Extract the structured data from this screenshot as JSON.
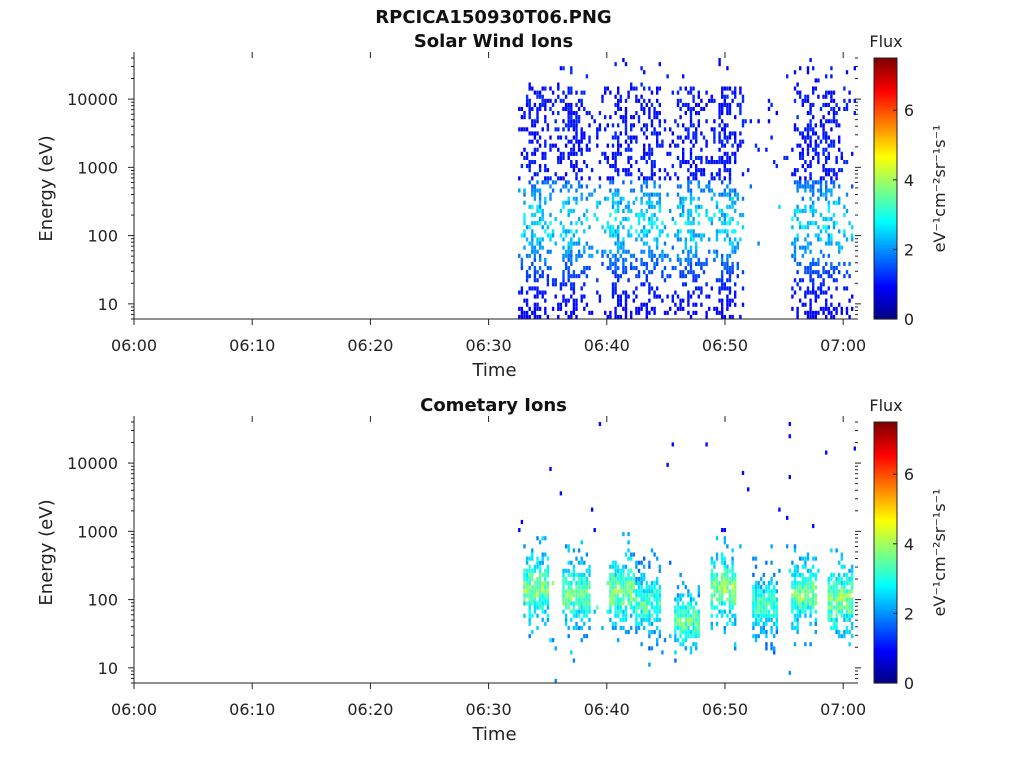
{
  "figure": {
    "title": "RPCICA150930T06.PNG"
  },
  "chart_data": [
    {
      "type": "heatmap",
      "title": "Solar Wind Ions",
      "xlabel": "Time",
      "ylabel": "Energy (eV)",
      "x_ticks": [
        "06:00",
        "06:10",
        "06:20",
        "06:30",
        "06:40",
        "06:50",
        "07:00"
      ],
      "xlim": [
        "06:00",
        "07:01"
      ],
      "y_scale": "log",
      "y_ticks": [
        "10",
        "100",
        "1000",
        "10000"
      ],
      "ylim": [
        6,
        40000
      ],
      "colorbar": {
        "label": "Flux",
        "unit": "eV⁻¹cm⁻²sr⁻¹s⁻¹",
        "ticks": [
          "0",
          "2",
          "4",
          "6"
        ],
        "range": [
          0,
          7.5
        ],
        "colormap": "jet"
      },
      "data_start": "06:32:30",
      "activity_bursts": [
        {
          "center": "06:34:00",
          "peak_energy": 200,
          "flux": 2.8
        },
        {
          "center": "06:37:00",
          "peak_energy": 200,
          "flux": 2.8
        },
        {
          "center": "06:41:00",
          "peak_energy": 250,
          "flux": 2.7
        },
        {
          "center": "06:43:30",
          "peak_energy": 150,
          "flux": 2.5
        },
        {
          "center": "06:47:00",
          "peak_energy": 150,
          "flux": 2.5
        },
        {
          "center": "06:50:00",
          "peak_energy": 250,
          "flux": 2.8
        },
        {
          "center": "06:57:00",
          "peak_energy": 150,
          "flux": 2.6
        },
        {
          "center": "06:58:30",
          "peak_energy": 150,
          "flux": 2.6
        }
      ],
      "gaps": [
        [
          "06:51:30",
          "06:55:30"
        ]
      ]
    },
    {
      "type": "heatmap",
      "title": "Cometary Ions",
      "xlabel": "Time",
      "ylabel": "Energy (eV)",
      "x_ticks": [
        "06:00",
        "06:10",
        "06:20",
        "06:30",
        "06:40",
        "06:50",
        "07:00"
      ],
      "xlim": [
        "06:00",
        "07:01"
      ],
      "y_scale": "log",
      "y_ticks": [
        "10",
        "100",
        "1000",
        "10000"
      ],
      "ylim": [
        6,
        40000
      ],
      "colorbar": {
        "label": "Flux",
        "unit": "eV⁻¹cm⁻²sr⁻¹s⁻¹",
        "ticks": [
          "0",
          "2",
          "4",
          "6"
        ],
        "range": [
          0,
          7.5
        ],
        "colormap": "jet"
      },
      "data_start": "06:32:30",
      "activity_bursts": [
        {
          "center": "06:34:00",
          "peak_energy": 150,
          "flux": 4.0
        },
        {
          "center": "06:37:20",
          "peak_energy": 120,
          "flux": 3.9
        },
        {
          "center": "06:41:10",
          "peak_energy": 130,
          "flux": 4.0
        },
        {
          "center": "06:43:20",
          "peak_energy": 90,
          "flux": 3.6
        },
        {
          "center": "06:46:40",
          "peak_energy": 50,
          "flux": 3.7
        },
        {
          "center": "06:49:50",
          "peak_energy": 150,
          "flux": 4.1
        },
        {
          "center": "06:53:20",
          "peak_energy": 80,
          "flux": 3.5
        },
        {
          "center": "06:56:40",
          "peak_energy": 120,
          "flux": 3.9
        },
        {
          "center": "06:59:40",
          "peak_energy": 100,
          "flux": 4.1
        }
      ]
    }
  ]
}
